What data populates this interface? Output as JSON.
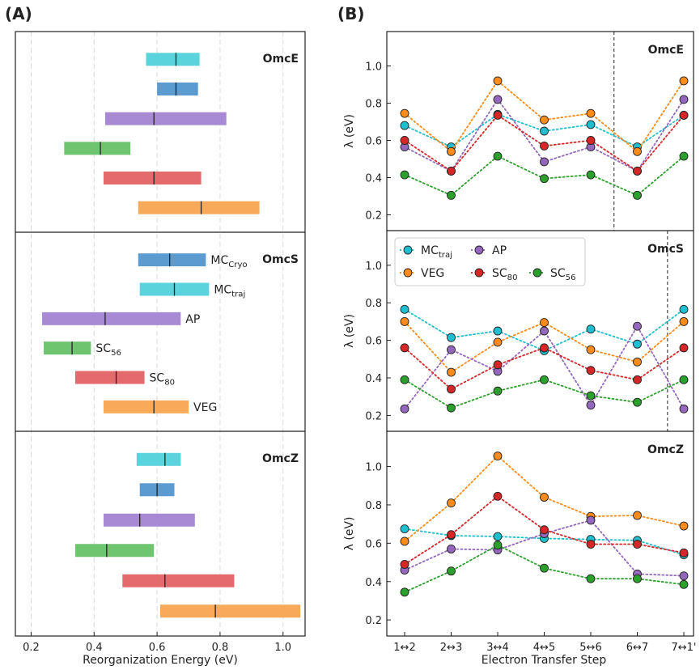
{
  "panel_labels": {
    "a": "(A)",
    "b": "(B)"
  },
  "colors": {
    "MC_traj": "#5ad3dc",
    "MC_Cryo": "#5b9bd0",
    "AP": "#a889d4",
    "SC_56": "#6fc46f",
    "SC_80": "#e56a6e",
    "VEG": "#f9a95a",
    "dot_MC_traj": "#1fbfcf",
    "dot_AP": "#9467bd",
    "dot_VEG": "#ff8c1a",
    "dot_SC_80": "#d62728",
    "dot_SC_56": "#2ca02c"
  },
  "chart_data": [
    {
      "id": "A",
      "type": "bar",
      "orientation": "horizontal-range",
      "title": "",
      "xlabel": "Reorganization Energy (eV)",
      "ylabel": "",
      "xlim": [
        0.15,
        1.07
      ],
      "xticks": [
        "0.2",
        "0.4",
        "0.6",
        "0.8",
        "1.0"
      ],
      "xtick_values": [
        0.2,
        0.4,
        0.6,
        0.8,
        1.0
      ],
      "grid": "vertical dashed",
      "subpanels": [
        {
          "name": "OmcE",
          "bars": [
            {
              "series": "MC_traj",
              "min": 0.565,
              "max": 0.735,
              "mean": 0.66
            },
            {
              "series": "MC_Cryo",
              "min": 0.6,
              "max": 0.73,
              "mean": 0.66
            },
            {
              "series": "AP",
              "min": 0.435,
              "max": 0.82,
              "mean": 0.59
            },
            {
              "series": "SC_56",
              "min": 0.305,
              "max": 0.515,
              "mean": 0.42
            },
            {
              "series": "SC_80",
              "min": 0.43,
              "max": 0.74,
              "mean": 0.59
            },
            {
              "series": "VEG",
              "min": 0.54,
              "max": 0.925,
              "mean": 0.74
            }
          ]
        },
        {
          "name": "OmcS",
          "bars": [
            {
              "series": "MC_Cryo",
              "label_main": "MC",
              "label_sub": "Cryo",
              "min": 0.54,
              "max": 0.755,
              "mean": 0.64
            },
            {
              "series": "MC_traj",
              "label_main": "MC",
              "label_sub": "traj",
              "min": 0.545,
              "max": 0.765,
              "mean": 0.655
            },
            {
              "series": "AP",
              "label_main": "AP",
              "label_sub": "",
              "min": 0.235,
              "max": 0.675,
              "mean": 0.435
            },
            {
              "series": "SC_56",
              "label_main": "SC",
              "label_sub": "56",
              "min": 0.24,
              "max": 0.39,
              "mean": 0.33
            },
            {
              "series": "SC_80",
              "label_main": "SC",
              "label_sub": "80",
              "min": 0.34,
              "max": 0.56,
              "mean": 0.47
            },
            {
              "series": "VEG",
              "label_main": "VEG",
              "label_sub": "",
              "min": 0.43,
              "max": 0.7,
              "mean": 0.59
            }
          ]
        },
        {
          "name": "OmcZ",
          "bars": [
            {
              "series": "MC_traj",
              "min": 0.535,
              "max": 0.675,
              "mean": 0.625
            },
            {
              "series": "MC_Cryo",
              "min": 0.545,
              "max": 0.655,
              "mean": 0.6
            },
            {
              "series": "AP",
              "min": 0.43,
              "max": 0.72,
              "mean": 0.545
            },
            {
              "series": "SC_56",
              "min": 0.34,
              "max": 0.59,
              "mean": 0.44
            },
            {
              "series": "SC_80",
              "min": 0.49,
              "max": 0.845,
              "mean": 0.625
            },
            {
              "series": "VEG",
              "min": 0.61,
              "max": 1.055,
              "mean": 0.785
            }
          ]
        }
      ]
    },
    {
      "id": "B",
      "type": "line",
      "xlabel": "Electron Transfer Step",
      "ylabel": "λ (eV)",
      "categories": [
        "1↔2",
        "2↔3",
        "3↔4",
        "4↔5",
        "5↔6",
        "6↔7",
        "7↔1'"
      ],
      "ylim": [
        0.15,
        1.15
      ],
      "yticks": [
        "0.2",
        "0.4",
        "0.6",
        "0.8",
        "1.0"
      ],
      "ytick_values": [
        0.2,
        0.4,
        0.6,
        0.8,
        1.0
      ],
      "legend": {
        "placement": "top-left of middle panel",
        "entries": [
          {
            "series": "MC_traj",
            "main": "MC",
            "sub": "traj"
          },
          {
            "series": "AP",
            "main": "AP",
            "sub": ""
          },
          {
            "series": "VEG",
            "main": "VEG",
            "sub": ""
          },
          {
            "series": "SC_80",
            "main": "SC",
            "sub": "80"
          },
          {
            "series": "SC_56",
            "main": "SC",
            "sub": "56"
          }
        ]
      },
      "subpanels": [
        {
          "name": "OmcE",
          "vline_at_step": 4.5,
          "series": [
            {
              "name": "MC_traj",
              "values": [
                0.68,
                0.565,
                0.74,
                0.65,
                0.685,
                0.565,
                0.735
              ]
            },
            {
              "name": "VEG",
              "values": [
                0.745,
                0.54,
                0.92,
                0.71,
                0.745,
                0.54,
                0.92
              ]
            },
            {
              "name": "AP",
              "values": [
                0.565,
                0.435,
                0.82,
                0.485,
                0.565,
                0.435,
                0.82
              ]
            },
            {
              "name": "SC_80",
              "values": [
                0.6,
                0.435,
                0.735,
                0.57,
                0.6,
                0.435,
                0.735
              ]
            },
            {
              "name": "SC_56",
              "values": [
                0.415,
                0.305,
                0.515,
                0.395,
                0.415,
                0.305,
                0.515
              ]
            }
          ]
        },
        {
          "name": "OmcS",
          "vline_at_step": 5.65,
          "series": [
            {
              "name": "MC_traj",
              "values": [
                0.765,
                0.615,
                0.65,
                0.545,
                0.66,
                0.58,
                0.765
              ]
            },
            {
              "name": "VEG",
              "values": [
                0.7,
                0.43,
                0.59,
                0.695,
                0.55,
                0.485,
                0.7
              ]
            },
            {
              "name": "AP",
              "values": [
                0.235,
                0.55,
                0.435,
                0.65,
                0.255,
                0.675,
                0.235
              ]
            },
            {
              "name": "SC_80",
              "values": [
                0.56,
                0.34,
                0.47,
                0.56,
                0.44,
                0.39,
                0.56
              ]
            },
            {
              "name": "SC_56",
              "values": [
                0.39,
                0.24,
                0.33,
                0.39,
                0.305,
                0.27,
                0.39
              ]
            }
          ]
        },
        {
          "name": "OmcZ",
          "vline_at_step": null,
          "series": [
            {
              "name": "MC_traj",
              "values": [
                0.675,
                0.64,
                0.635,
                0.625,
                0.62,
                0.615,
                0.54
              ]
            },
            {
              "name": "VEG",
              "values": [
                0.61,
                0.81,
                1.055,
                0.84,
                0.74,
                0.745,
                0.69
              ]
            },
            {
              "name": "AP",
              "values": [
                0.46,
                0.57,
                0.565,
                0.65,
                0.72,
                0.44,
                0.43
              ]
            },
            {
              "name": "SC_80",
              "values": [
                0.49,
                0.645,
                0.845,
                0.67,
                0.595,
                0.595,
                0.55
              ]
            },
            {
              "name": "SC_56",
              "values": [
                0.345,
                0.455,
                0.59,
                0.47,
                0.415,
                0.415,
                0.385
              ]
            }
          ]
        }
      ]
    }
  ]
}
